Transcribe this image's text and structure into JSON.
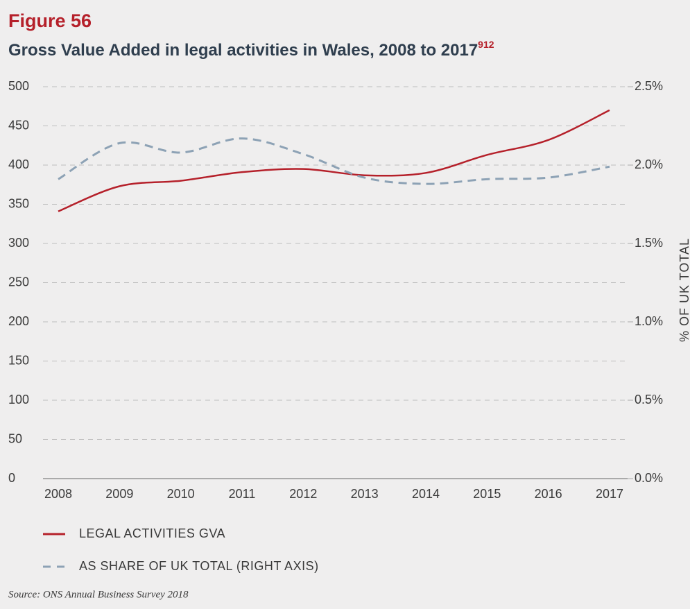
{
  "chart_data": {
    "type": "line",
    "figure_label": "Figure 56",
    "title": "Gross Value Added in legal activities in Wales, 2008 to 2017",
    "title_note": "912",
    "y2_label": "% OF UK TOTAL",
    "source": "Source: ONS Annual Business Survey 2018",
    "categories": [
      "2008",
      "2009",
      "2010",
      "2011",
      "2012",
      "2013",
      "2014",
      "2015",
      "2016",
      "2017"
    ],
    "series": [
      {
        "name": "LEGAL ACTIVITIES GVA",
        "color": "#b5202a",
        "line_style": "solid",
        "values": [
          341,
          373,
          380,
          391,
          395,
          387,
          390,
          413,
          432,
          470
        ]
      },
      {
        "name": "AS SHARE OF UK TOTAL (RIGHT AXIS)",
        "color": "#8da2b5",
        "line_style": "dashed",
        "axis": "y2",
        "values": [
          1.91,
          2.14,
          2.08,
          2.17,
          2.07,
          1.92,
          1.88,
          1.91,
          1.92,
          1.99
        ]
      }
    ],
    "ylim": [
      0,
      500
    ],
    "yticks": [
      0,
      50,
      100,
      150,
      200,
      250,
      300,
      350,
      400,
      450,
      500
    ],
    "y2lim": [
      0,
      2.5
    ],
    "y2ticks": [
      {
        "value": 0,
        "label": "0.0%"
      },
      {
        "value": 0.5,
        "label": "0.5%"
      },
      {
        "value": 1,
        "label": "1.0%"
      },
      {
        "value": 1.5,
        "label": "1.5%"
      },
      {
        "value": 2,
        "label": "2.0%"
      },
      {
        "value": 2.5,
        "label": "2.5%"
      }
    ],
    "grid": true
  }
}
